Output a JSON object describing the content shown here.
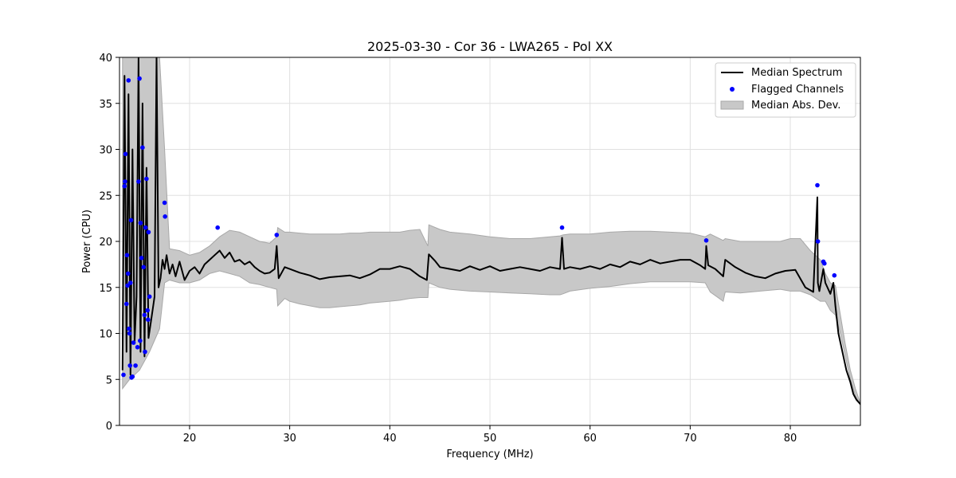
{
  "chart_data": {
    "type": "line",
    "title": "2025-03-30 - Cor 36 - LWA265 - Pol XX",
    "xlabel": "Frequency (MHz)",
    "ylabel": "Power (CPU)",
    "xlim": [
      13.0,
      87.0
    ],
    "ylim": [
      0,
      40
    ],
    "x_ticks": [
      20,
      30,
      40,
      50,
      60,
      70,
      80
    ],
    "y_ticks": [
      0,
      5,
      10,
      15,
      20,
      25,
      30,
      35,
      40
    ],
    "grid": true,
    "legend_position": "top-right",
    "colors": {
      "median": "#000000",
      "flagged": "#0000ff",
      "mad_fill": "#c8c8c8",
      "mad_edge": "#a8a8a8",
      "grid": "#e0e0e0"
    },
    "series": [
      {
        "name": "Median Spectrum",
        "kind": "line",
        "x": [
          13.3,
          13.5,
          13.7,
          13.9,
          14.1,
          14.3,
          14.5,
          14.7,
          14.9,
          15.1,
          15.3,
          15.5,
          15.7,
          15.9,
          16.1,
          16.3,
          16.5,
          16.7,
          16.9,
          17.1,
          17.3,
          17.5,
          17.7,
          18.0,
          18.3,
          18.6,
          19.0,
          19.5,
          20.0,
          20.5,
          21.0,
          21.5,
          22.0,
          22.5,
          23.0,
          23.5,
          24.0,
          24.5,
          25.0,
          25.5,
          26.0,
          26.5,
          27.0,
          27.5,
          28.0,
          28.5,
          28.7,
          28.9,
          29.5,
          30.0,
          31.0,
          32.0,
          33.0,
          34.0,
          35.0,
          36.0,
          37.0,
          38.0,
          39.0,
          40.0,
          41.0,
          42.0,
          43.0,
          43.7,
          43.9,
          44.5,
          45.0,
          46.0,
          47.0,
          48.0,
          49.0,
          50.0,
          51.0,
          52.0,
          53.0,
          54.0,
          55.0,
          56.0,
          57.0,
          57.2,
          57.4,
          58.0,
          59.0,
          60.0,
          61.0,
          62.0,
          63.0,
          64.0,
          65.0,
          66.0,
          67.0,
          68.0,
          69.0,
          70.0,
          71.0,
          71.5,
          71.6,
          71.8,
          72.5,
          73.3,
          73.5,
          74.5,
          75.5,
          76.5,
          77.5,
          78.5,
          79.5,
          80.5,
          81.5,
          82.3,
          82.7,
          82.75,
          82.9,
          83.3,
          83.5,
          84.0,
          84.3,
          84.5,
          84.8,
          85.2,
          85.6,
          86.0,
          86.3,
          86.6,
          87.0
        ],
        "values": [
          6.0,
          38.0,
          8.0,
          36.0,
          5.5,
          30.0,
          9.0,
          14.0,
          40.0,
          8.0,
          35.0,
          7.5,
          28.0,
          9.5,
          11.0,
          12.5,
          14.0,
          40.0,
          15.0,
          16.0,
          18.0,
          17.0,
          18.5,
          16.5,
          17.5,
          16.2,
          17.8,
          15.8,
          16.8,
          17.2,
          16.5,
          17.5,
          18.0,
          18.5,
          19.0,
          18.2,
          18.8,
          17.8,
          18.0,
          17.5,
          17.8,
          17.2,
          16.8,
          16.5,
          16.6,
          17.0,
          19.5,
          16.0,
          17.2,
          17.0,
          16.6,
          16.3,
          15.9,
          16.1,
          16.2,
          16.3,
          16.0,
          16.4,
          17.0,
          17.0,
          17.3,
          17.0,
          16.2,
          15.8,
          18.6,
          17.9,
          17.2,
          17.0,
          16.8,
          17.3,
          16.9,
          17.3,
          16.8,
          17.0,
          17.2,
          17.0,
          16.8,
          17.2,
          17.0,
          20.4,
          17.0,
          17.2,
          17.0,
          17.3,
          17.0,
          17.5,
          17.2,
          17.8,
          17.5,
          18.0,
          17.6,
          17.8,
          18.0,
          18.0,
          17.4,
          17.0,
          19.5,
          17.4,
          17.0,
          16.2,
          18.0,
          17.2,
          16.6,
          16.2,
          16.0,
          16.5,
          16.8,
          16.9,
          15.0,
          14.5,
          24.8,
          15.5,
          14.6,
          17.0,
          15.5,
          14.3,
          15.5,
          13.0,
          10.0,
          8.0,
          6.0,
          4.7,
          3.4,
          2.8,
          2.3
        ]
      },
      {
        "name": "Flagged Channels",
        "kind": "scatter",
        "x": [
          13.4,
          13.5,
          13.55,
          13.6,
          13.7,
          13.75,
          13.8,
          13.85,
          13.9,
          13.95,
          14.0,
          14.05,
          14.1,
          14.15,
          14.2,
          14.3,
          14.4,
          14.6,
          14.8,
          14.9,
          15.0,
          15.05,
          15.1,
          15.2,
          15.3,
          15.4,
          15.5,
          15.55,
          15.6,
          15.7,
          15.8,
          15.85,
          15.9,
          16.0,
          17.5,
          17.55,
          22.8,
          28.7,
          57.2,
          71.6,
          82.7,
          82.75,
          83.3,
          83.4,
          84.4
        ],
        "values": [
          5.5,
          26.0,
          26.5,
          29.5,
          13.2,
          18.5,
          15.2,
          16.5,
          37.5,
          10.5,
          10.0,
          6.5,
          15.5,
          22.3,
          5.2,
          5.3,
          9.0,
          6.5,
          8.5,
          26.5,
          37.7,
          9.2,
          22.0,
          18.2,
          30.2,
          17.2,
          12.0,
          8.0,
          21.5,
          26.8,
          12.5,
          11.5,
          21.0,
          14.0,
          24.2,
          22.7,
          21.5,
          20.7,
          21.5,
          20.1,
          26.1,
          20.0,
          17.8,
          17.6,
          16.3
        ]
      },
      {
        "name": "Median Abs. Dev.",
        "kind": "band",
        "x": [
          13.3,
          14.0,
          15.0,
          16.0,
          17.0,
          17.5,
          18.0,
          19.0,
          20.0,
          21.0,
          22.0,
          23.0,
          24.0,
          25.0,
          26.0,
          27.0,
          28.0,
          28.7,
          28.8,
          29.5,
          30.0,
          31.0,
          32.0,
          33.0,
          34.0,
          35.0,
          36.0,
          37.0,
          38.0,
          39.0,
          40.0,
          41.0,
          42.0,
          43.0,
          43.8,
          43.9,
          45.0,
          46.0,
          48.0,
          50.0,
          52.0,
          54.0,
          56.0,
          57.0,
          57.3,
          58.0,
          60.0,
          62.0,
          64.0,
          66.0,
          68.0,
          70.0,
          71.5,
          72.0,
          73.3,
          73.5,
          75.0,
          77.0,
          79.0,
          80.0,
          81.0,
          82.0,
          83.0,
          83.5,
          84.0,
          84.5,
          85.0,
          85.5,
          86.0,
          86.5,
          87.0
        ],
        "lower": [
          4.0,
          5.0,
          6.0,
          8.0,
          10.5,
          15.5,
          15.8,
          15.5,
          15.5,
          15.8,
          16.5,
          16.8,
          16.5,
          16.2,
          15.5,
          15.3,
          15.0,
          14.8,
          13.0,
          13.8,
          13.5,
          13.2,
          13.0,
          12.8,
          12.8,
          12.9,
          13.0,
          13.1,
          13.3,
          13.4,
          13.5,
          13.6,
          13.8,
          13.9,
          13.9,
          15.5,
          15.0,
          14.8,
          14.6,
          14.5,
          14.4,
          14.3,
          14.2,
          14.2,
          14.3,
          14.6,
          14.9,
          15.1,
          15.4,
          15.6,
          15.6,
          15.6,
          15.5,
          14.5,
          13.5,
          14.5,
          14.4,
          14.6,
          14.8,
          14.6,
          14.6,
          14.2,
          13.5,
          13.5,
          12.5,
          12.0,
          10.0,
          7.5,
          5.0,
          3.2,
          2.2
        ],
        "upper": [
          40.0,
          40.0,
          40.0,
          40.0,
          40.0,
          30.0,
          19.2,
          19.0,
          18.5,
          18.8,
          19.5,
          20.5,
          21.2,
          21.0,
          20.5,
          20.0,
          19.8,
          20.5,
          21.5,
          21.0,
          21.0,
          20.9,
          20.8,
          20.8,
          20.8,
          20.8,
          20.9,
          20.9,
          21.0,
          21.0,
          21.0,
          21.0,
          21.2,
          21.3,
          19.5,
          21.8,
          21.3,
          21.0,
          20.8,
          20.5,
          20.3,
          20.3,
          20.5,
          20.6,
          20.7,
          20.8,
          20.8,
          21.0,
          21.1,
          21.1,
          21.0,
          20.9,
          20.5,
          20.8,
          20.1,
          20.3,
          20.0,
          20.0,
          20.0,
          20.3,
          20.3,
          19.0,
          18.0,
          16.5,
          15.5,
          15.2,
          12.0,
          8.8,
          6.0,
          4.0,
          2.4
        ]
      }
    ]
  }
}
